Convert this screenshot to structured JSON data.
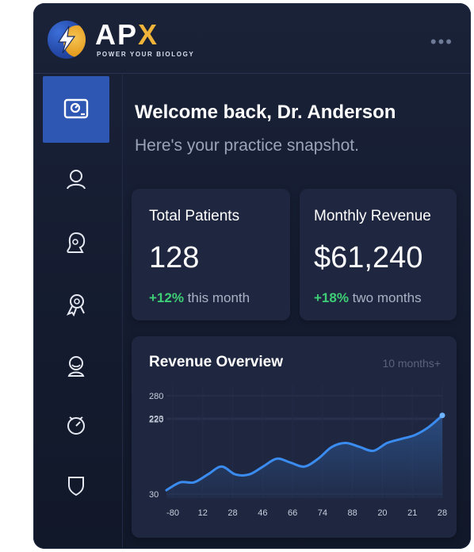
{
  "brand": {
    "name_main": "AP",
    "name_accent": "X",
    "tagline": "POWER YOUR BIOLOGY",
    "logo_icon": "lightning-bolt-icon",
    "colors": {
      "blue": "#2e56b3",
      "gold": "#f0b43a"
    }
  },
  "header": {
    "more_icon": "more-horizontal-icon",
    "more_label": "•••"
  },
  "sidebar": {
    "items": [
      {
        "icon": "dashboard-icon",
        "active": true
      },
      {
        "icon": "user-icon",
        "active": false
      },
      {
        "icon": "chat-user-icon",
        "active": false
      },
      {
        "icon": "award-icon",
        "active": false
      },
      {
        "icon": "profile-icon",
        "active": false
      },
      {
        "icon": "clock-icon",
        "active": false
      },
      {
        "icon": "shield-icon",
        "active": false
      }
    ]
  },
  "main": {
    "welcome": "Welcome back, Dr. Anderson",
    "subtitle": "Here's your practice snapshot."
  },
  "stats": [
    {
      "title": "Total Patients",
      "value": "128",
      "delta": "+12%",
      "delta_label": " this month"
    },
    {
      "title": "Monthly Revenue",
      "value": "$61,240",
      "delta": "+18%",
      "delta_label": " two months"
    }
  ],
  "revenue_chart": {
    "title": "Revenue Overview",
    "range_label": "10 months",
    "range_icon": "plus-icon",
    "range_suffix": "+"
  },
  "chart_data": {
    "type": "area",
    "title": "Revenue Overview",
    "x_tick_labels": [
      "-80",
      "12",
      "28",
      "46",
      "66",
      "74",
      "88",
      "20",
      "21",
      "28"
    ],
    "y_tick_labels": [
      "280",
      "223",
      "220",
      "30"
    ],
    "y_ticks": [
      280,
      223,
      220,
      30
    ],
    "ylim": [
      20,
      290
    ],
    "grid": true,
    "x": [
      0,
      0.5,
      1,
      1.5,
      2,
      2.5,
      3,
      3.5,
      4,
      4.5,
      5,
      5.5,
      6,
      6.5,
      7,
      7.5,
      8,
      8.5,
      9,
      9.5,
      10
    ],
    "values": [
      40,
      60,
      60,
      80,
      100,
      80,
      80,
      100,
      120,
      110,
      100,
      120,
      150,
      160,
      150,
      140,
      160,
      170,
      180,
      200,
      230
    ],
    "color": "#3b8cf0"
  }
}
